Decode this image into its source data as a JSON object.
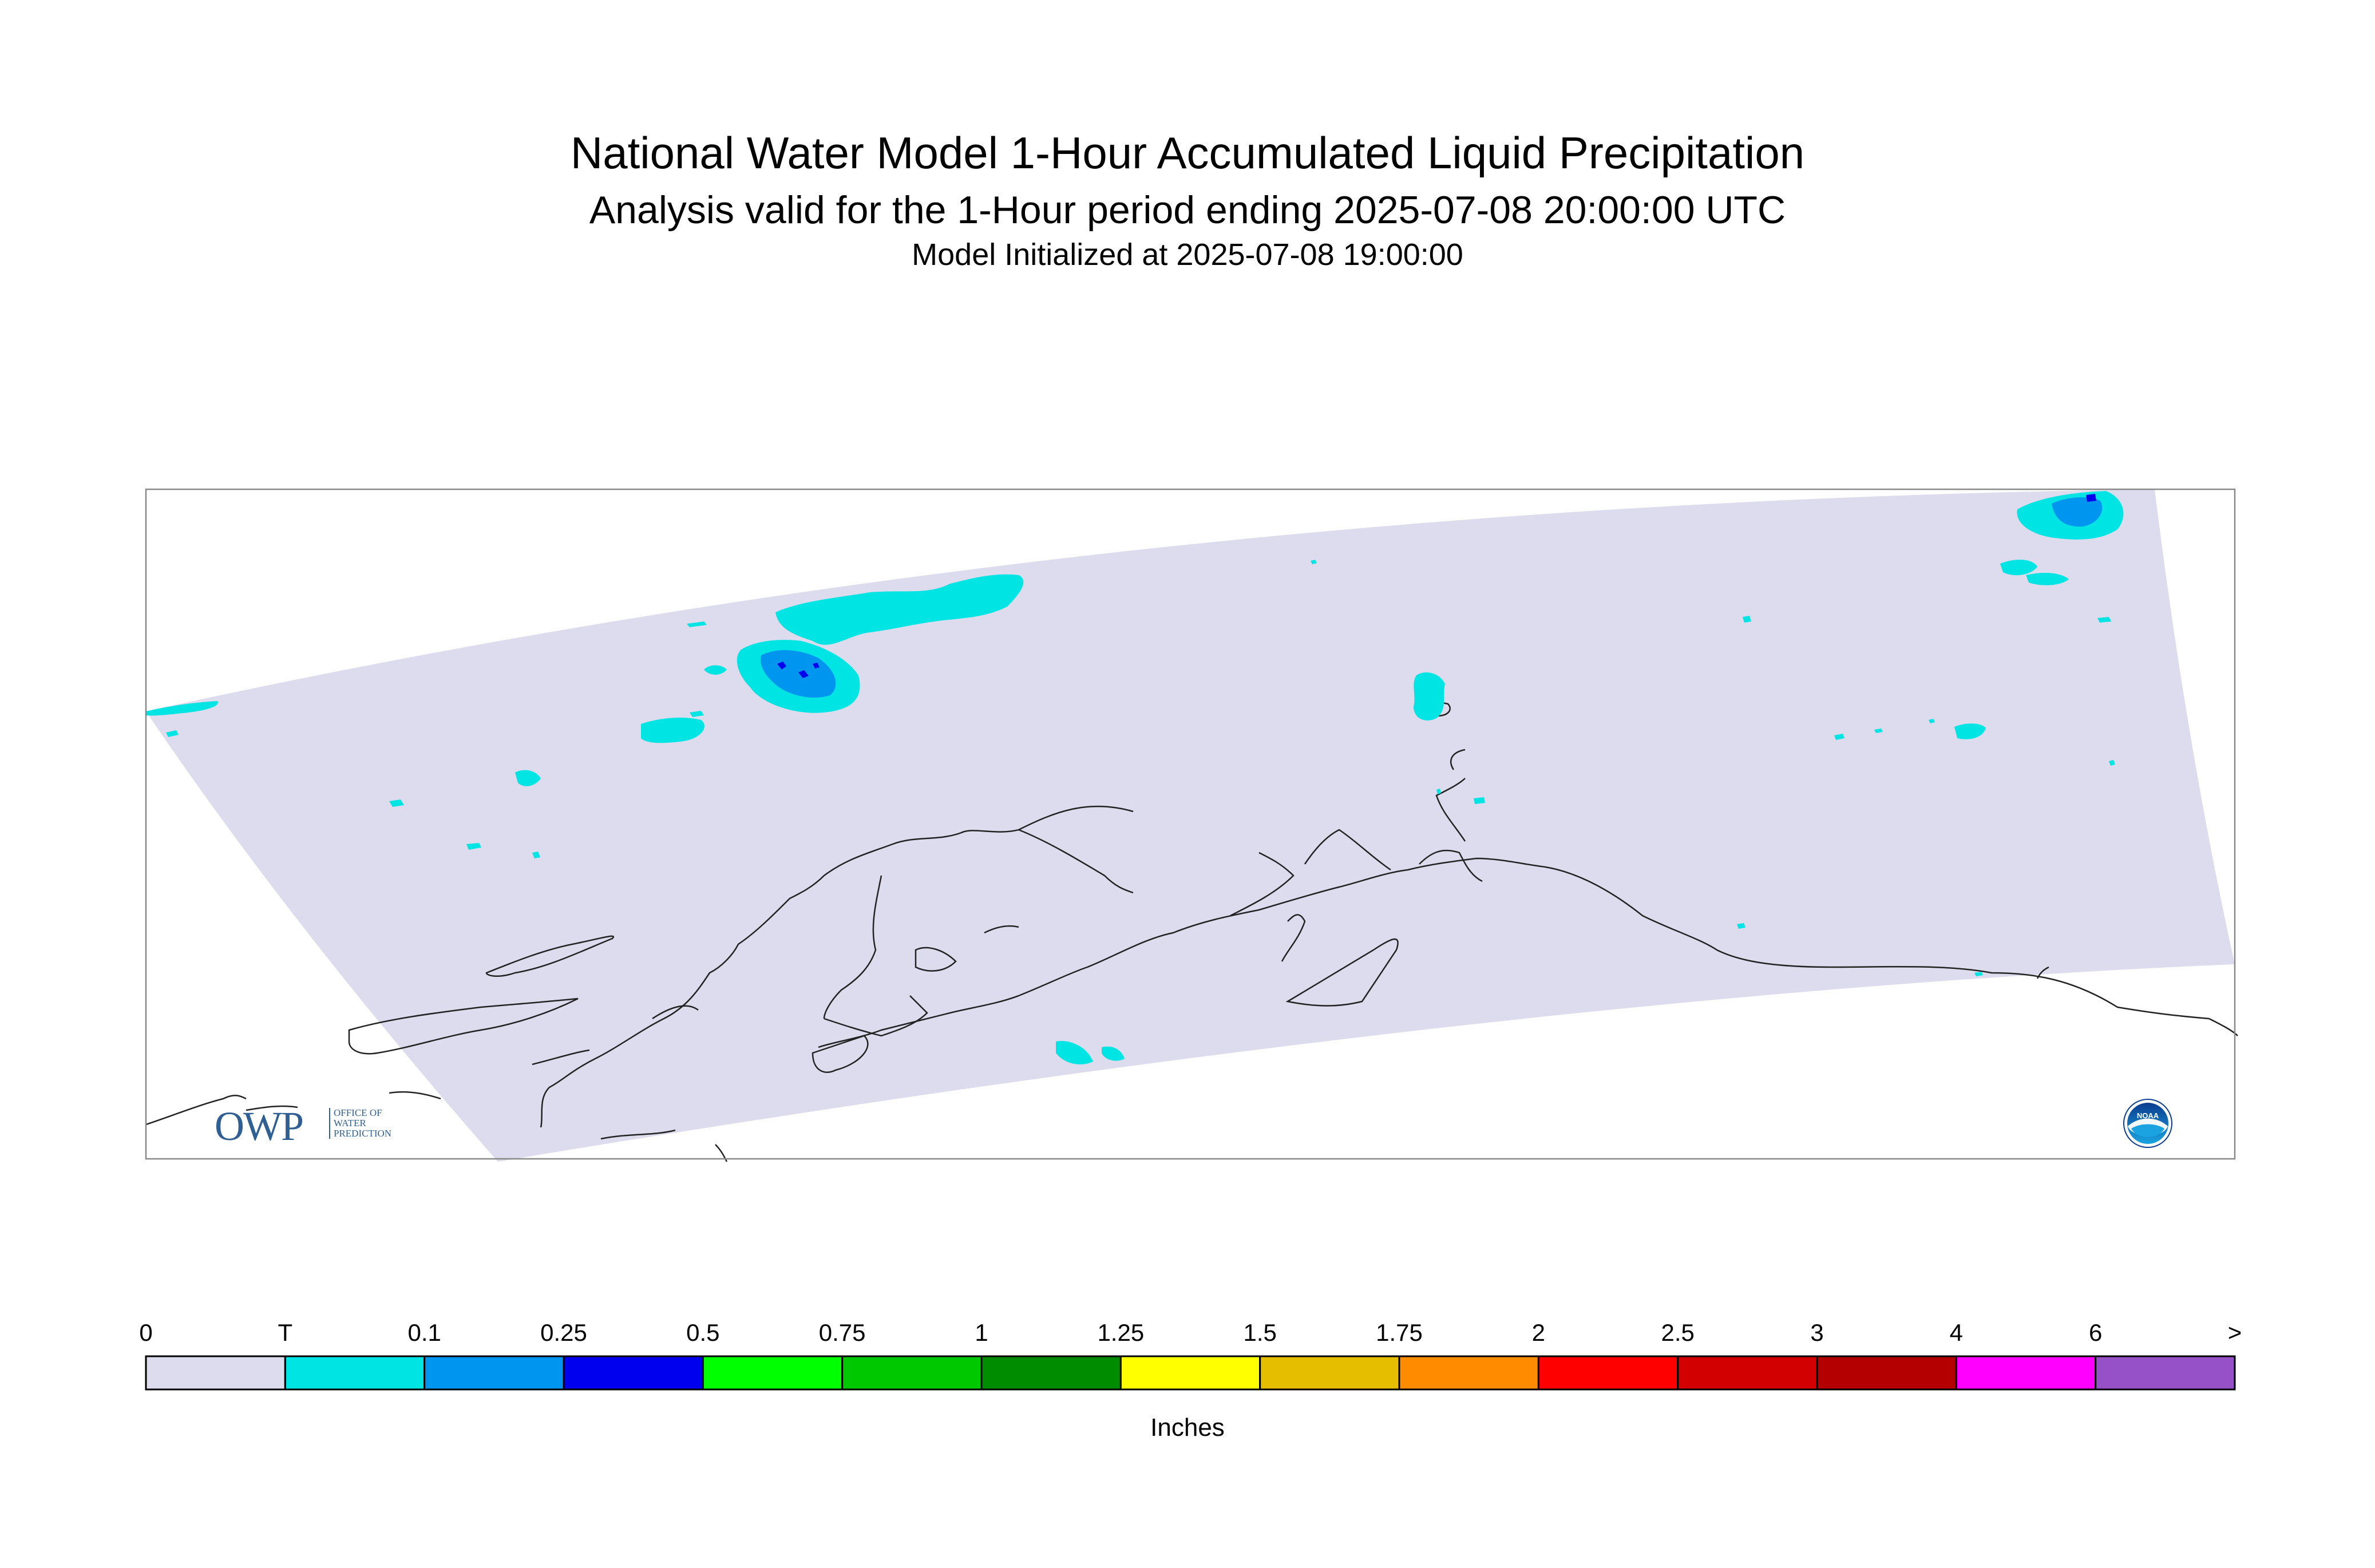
{
  "header": {
    "title": "National Water Model 1-Hour Accumulated Liquid Precipitation",
    "subtitle": "Analysis valid for the 1-Hour period ending 2025-07-08 20:00:00 UTC",
    "init_line": "Model Initialized at 2025-07-08 19:00:00"
  },
  "legend": {
    "tick_labels": [
      "0",
      "T",
      "0.1",
      "0.25",
      "0.5",
      "0.75",
      "1",
      "1.25",
      "1.5",
      "1.75",
      "2",
      "2.5",
      "3",
      "4",
      "6",
      ">"
    ],
    "colors": [
      "#dcdcee",
      "#00e4e4",
      "#0096f0",
      "#0000ee",
      "#00ff00",
      "#00c800",
      "#008c00",
      "#ffff00",
      "#e6be00",
      "#ff8c00",
      "#ff0000",
      "#d20000",
      "#b40000",
      "#ff00ff",
      "#9650c8"
    ],
    "unit_label": "Inches"
  },
  "map": {
    "domain_fill": "#dcdcee",
    "coast_color": "#222222",
    "precip_colors": {
      "trace": "#00e4e4",
      "light": "#0096f0",
      "moderate": "#0000ee"
    }
  },
  "logos": {
    "owp": {
      "letters": "OWP",
      "sub": "OFFICE OF\nWATER\nPREDICTION"
    },
    "noaa": {
      "text": "NOAA"
    }
  }
}
